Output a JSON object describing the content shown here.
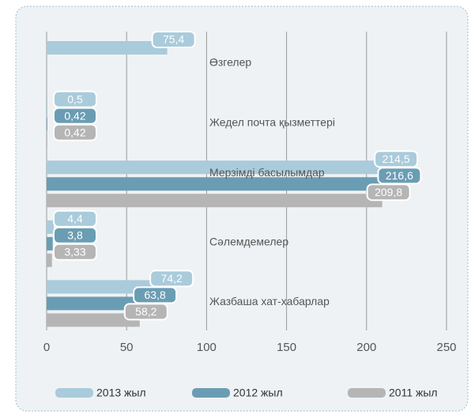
{
  "chart_data": {
    "type": "hbar",
    "categories": [
      "Өзгелер",
      "Жедел почта қызметтері",
      "Мерзімді басылымдар",
      "Сәлемдемелер",
      "Жазбаша хат-хабарлар"
    ],
    "series": [
      {
        "name": "2013 жыл",
        "color": "#a9cbdb",
        "values": [
          75.4,
          0.5,
          214.5,
          4.4,
          74.2
        ],
        "value_labels": [
          "75,4",
          "0,5",
          "214,5",
          "4,4",
          "74,2"
        ]
      },
      {
        "name": "2012 жыл",
        "color": "#6a9db3",
        "values": [
          0,
          0.42,
          216.6,
          3.8,
          63.8
        ],
        "value_labels": [
          null,
          "0,42",
          "216,6",
          "3,8",
          "63,8"
        ]
      },
      {
        "name": "2011 жыл",
        "color": "#b5b5b5",
        "values": [
          0,
          0.42,
          209.8,
          3.33,
          58.2
        ],
        "value_labels": [
          null,
          "0,42",
          "209,8",
          "3,33",
          "58,2"
        ]
      }
    ],
    "xlim": [
      0,
      250
    ],
    "xticks": [
      0,
      50,
      100,
      150,
      200,
      250
    ],
    "grid": true
  }
}
